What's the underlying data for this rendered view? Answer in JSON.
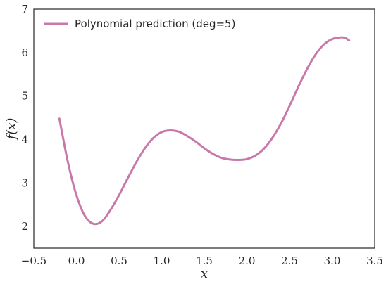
{
  "chart_data": {
    "type": "line",
    "xlabel": "x",
    "ylabel": "f(x)",
    "xlim": [
      -0.5,
      3.5
    ],
    "ylim": [
      1.5,
      7
    ],
    "xticks": [
      -0.5,
      0.0,
      0.5,
      1.0,
      1.5,
      2.0,
      2.5,
      3.0,
      3.5
    ],
    "xtick_labels": [
      "−0.5",
      "0.0",
      "0.5",
      "1.0",
      "1.5",
      "2.0",
      "2.5",
      "3.0",
      "3.5"
    ],
    "yticks": [
      2,
      3,
      4,
      5,
      6,
      7
    ],
    "ytick_labels": [
      "2",
      "3",
      "4",
      "5",
      "6",
      "7"
    ],
    "grid": false,
    "legend_position": "top-left",
    "series": [
      {
        "name": "Polynomial prediction (deg=5)",
        "color": "#c878aa",
        "x": [
          -0.2,
          -0.1,
          0.0,
          0.1,
          0.2,
          0.3,
          0.4,
          0.5,
          0.6,
          0.7,
          0.8,
          0.9,
          1.0,
          1.1,
          1.2,
          1.3,
          1.4,
          1.5,
          1.6,
          1.7,
          1.8,
          1.9,
          2.0,
          2.1,
          2.2,
          2.3,
          2.4,
          2.5,
          2.6,
          2.7,
          2.8,
          2.9,
          3.0,
          3.1,
          3.15,
          3.2
        ],
        "y": [
          4.48,
          3.48,
          2.72,
          2.24,
          2.06,
          2.12,
          2.38,
          2.72,
          3.1,
          3.47,
          3.79,
          4.03,
          4.17,
          4.21,
          4.18,
          4.08,
          3.95,
          3.8,
          3.67,
          3.58,
          3.54,
          3.53,
          3.55,
          3.63,
          3.79,
          4.04,
          4.37,
          4.77,
          5.2,
          5.6,
          5.94,
          6.18,
          6.31,
          6.35,
          6.34,
          6.28
        ]
      }
    ]
  }
}
